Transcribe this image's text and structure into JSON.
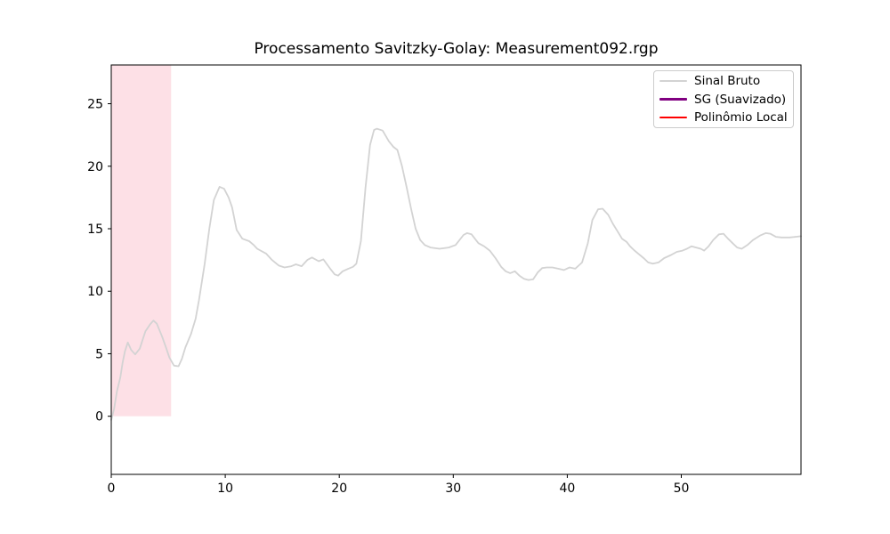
{
  "figure": {
    "background_color": "#ffffff",
    "spine_color": "#000000"
  },
  "chart_data": {
    "type": "line",
    "title": "Processamento Savitzky-Golay: Measurement092.rgp",
    "xlabel": "",
    "ylabel": "",
    "xlim": [
      0,
      60.5
    ],
    "ylim": [
      -4.65,
      28.1
    ],
    "xticks": [
      0,
      10,
      20,
      30,
      40,
      50
    ],
    "yticks": [
      0,
      5,
      10,
      15,
      20,
      25
    ],
    "grid": false,
    "legend_position": "upper right",
    "highlight_span": {
      "x0": 0,
      "x1": 5.25,
      "y0": 0,
      "y1": 28.1,
      "color": "#fde0e6"
    },
    "series": [
      {
        "id": "sinal-bruto",
        "name": "Sinal Bruto",
        "color": "#d3d3d3",
        "linewidth": 1.8,
        "legend_linewidth": 2,
        "points": [
          [
            0,
            -0.3
          ],
          [
            0.25,
            0.6
          ],
          [
            0.5,
            2.0
          ],
          [
            0.8,
            3.1
          ],
          [
            1.0,
            4.3
          ],
          [
            1.2,
            5.2
          ],
          [
            1.45,
            5.9
          ],
          [
            1.75,
            5.3
          ],
          [
            2.1,
            4.95
          ],
          [
            2.5,
            5.4
          ],
          [
            3.0,
            6.8
          ],
          [
            3.4,
            7.35
          ],
          [
            3.7,
            7.65
          ],
          [
            4.0,
            7.4
          ],
          [
            4.45,
            6.4
          ],
          [
            4.8,
            5.5
          ],
          [
            5.1,
            4.7
          ],
          [
            5.5,
            4.05
          ],
          [
            5.9,
            4.0
          ],
          [
            6.2,
            4.6
          ],
          [
            6.5,
            5.5
          ],
          [
            7.0,
            6.6
          ],
          [
            7.4,
            7.8
          ],
          [
            7.7,
            9.3
          ],
          [
            8.2,
            12.2
          ],
          [
            8.6,
            15.0
          ],
          [
            9.0,
            17.3
          ],
          [
            9.5,
            18.35
          ],
          [
            9.9,
            18.2
          ],
          [
            10.3,
            17.5
          ],
          [
            10.6,
            16.7
          ],
          [
            11.0,
            14.9
          ],
          [
            11.5,
            14.2
          ],
          [
            12.1,
            14.0
          ],
          [
            12.5,
            13.7
          ],
          [
            12.8,
            13.4
          ],
          [
            13.6,
            13.0
          ],
          [
            14.1,
            12.5
          ],
          [
            14.7,
            12.05
          ],
          [
            15.2,
            11.9
          ],
          [
            15.8,
            12.0
          ],
          [
            16.2,
            12.15
          ],
          [
            16.7,
            12.0
          ],
          [
            17.2,
            12.5
          ],
          [
            17.6,
            12.7
          ],
          [
            18.2,
            12.4
          ],
          [
            18.6,
            12.55
          ],
          [
            19.2,
            11.8
          ],
          [
            19.6,
            11.35
          ],
          [
            19.9,
            11.25
          ],
          [
            20.3,
            11.6
          ],
          [
            20.8,
            11.8
          ],
          [
            21.2,
            11.95
          ],
          [
            21.5,
            12.2
          ],
          [
            21.9,
            14.0
          ],
          [
            22.3,
            18.3
          ],
          [
            22.7,
            21.7
          ],
          [
            23.05,
            22.9
          ],
          [
            23.3,
            23.0
          ],
          [
            23.8,
            22.85
          ],
          [
            24.35,
            22.0
          ],
          [
            24.75,
            21.55
          ],
          [
            25.1,
            21.3
          ],
          [
            25.5,
            20.0
          ],
          [
            25.9,
            18.35
          ],
          [
            26.3,
            16.6
          ],
          [
            26.7,
            15.0
          ],
          [
            27.1,
            14.1
          ],
          [
            27.5,
            13.7
          ],
          [
            28.0,
            13.5
          ],
          [
            28.8,
            13.4
          ],
          [
            29.6,
            13.5
          ],
          [
            30.2,
            13.7
          ],
          [
            30.9,
            14.5
          ],
          [
            31.2,
            14.65
          ],
          [
            31.6,
            14.55
          ],
          [
            32.2,
            13.85
          ],
          [
            32.7,
            13.6
          ],
          [
            33.2,
            13.25
          ],
          [
            33.7,
            12.65
          ],
          [
            34.2,
            11.95
          ],
          [
            34.6,
            11.6
          ],
          [
            35.0,
            11.45
          ],
          [
            35.4,
            11.6
          ],
          [
            35.8,
            11.25
          ],
          [
            36.2,
            11.0
          ],
          [
            36.6,
            10.9
          ],
          [
            37.0,
            10.95
          ],
          [
            37.4,
            11.5
          ],
          [
            37.8,
            11.85
          ],
          [
            38.2,
            11.9
          ],
          [
            38.7,
            11.9
          ],
          [
            39.2,
            11.8
          ],
          [
            39.7,
            11.7
          ],
          [
            40.2,
            11.9
          ],
          [
            40.7,
            11.8
          ],
          [
            41.3,
            12.3
          ],
          [
            41.8,
            13.85
          ],
          [
            42.2,
            15.7
          ],
          [
            42.7,
            16.55
          ],
          [
            43.1,
            16.6
          ],
          [
            43.6,
            16.1
          ],
          [
            44.0,
            15.4
          ],
          [
            44.4,
            14.8
          ],
          [
            44.8,
            14.2
          ],
          [
            45.2,
            13.95
          ],
          [
            45.5,
            13.6
          ],
          [
            45.9,
            13.25
          ],
          [
            46.3,
            12.95
          ],
          [
            46.7,
            12.65
          ],
          [
            47.1,
            12.3
          ],
          [
            47.5,
            12.2
          ],
          [
            48.0,
            12.3
          ],
          [
            48.5,
            12.65
          ],
          [
            49.1,
            12.9
          ],
          [
            49.6,
            13.15
          ],
          [
            50.1,
            13.25
          ],
          [
            50.5,
            13.4
          ],
          [
            50.9,
            13.6
          ],
          [
            51.3,
            13.5
          ],
          [
            51.7,
            13.4
          ],
          [
            52.0,
            13.25
          ],
          [
            52.4,
            13.6
          ],
          [
            52.8,
            14.1
          ],
          [
            53.3,
            14.55
          ],
          [
            53.7,
            14.6
          ],
          [
            54.1,
            14.2
          ],
          [
            54.5,
            13.85
          ],
          [
            54.9,
            13.5
          ],
          [
            55.3,
            13.4
          ],
          [
            55.8,
            13.7
          ],
          [
            56.3,
            14.1
          ],
          [
            56.9,
            14.45
          ],
          [
            57.4,
            14.65
          ],
          [
            57.8,
            14.6
          ],
          [
            58.3,
            14.35
          ],
          [
            58.8,
            14.3
          ],
          [
            59.5,
            14.3
          ],
          [
            60.0,
            14.35
          ],
          [
            60.5,
            14.4
          ]
        ]
      },
      {
        "id": "sg-suavizado",
        "name": "SG (Suavizado)",
        "color": "#800080",
        "linewidth": 3,
        "legend_linewidth": 3.5,
        "points": []
      },
      {
        "id": "polinomio-local",
        "name": "Polinômio Local",
        "color": "#ff0000",
        "linewidth": 1.8,
        "legend_linewidth": 2,
        "points": []
      }
    ]
  }
}
